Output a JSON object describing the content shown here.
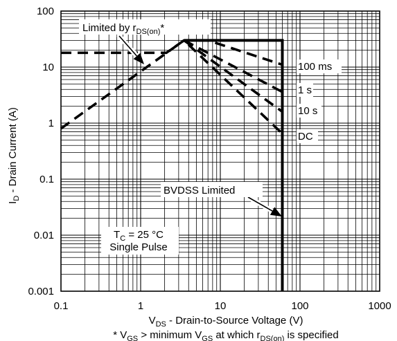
{
  "chart_data": {
    "type": "line",
    "scale": {
      "x": "log",
      "y": "log"
    },
    "xlim": [
      0.1,
      1000
    ],
    "ylim": [
      0.001,
      100
    ],
    "grid": true,
    "x_ticks": [
      "0.1",
      "1",
      "10",
      "100",
      "1000"
    ],
    "y_ticks": [
      "0.001",
      "0.01",
      "0.1",
      "1",
      "10",
      "100"
    ],
    "xlabel": {
      "main": "V",
      "sub": "DS",
      "rest": " - Drain-to-Source Voltage (V)"
    },
    "ylabel": {
      "main": "I",
      "sub": "D",
      "rest": " - Drain Current (A)"
    },
    "footnote": {
      "p1": "* V",
      "s1": "GS",
      "p2": " > minimum V",
      "s2": "GS",
      "p3": " at which r",
      "s3": "DS(on)",
      "p4": " is specified"
    },
    "series": [
      {
        "name": "",
        "style": "solid",
        "points": [
          [
            3.5,
            30
          ],
          [
            60,
            30
          ],
          [
            60,
            0.001
          ]
        ]
      },
      {
        "name": "100 ms",
        "style": "dashed",
        "points": [
          [
            0.1,
            0.8
          ],
          [
            3.5,
            30
          ],
          [
            7,
            30
          ],
          [
            60,
            11
          ]
        ]
      },
      {
        "name": "1 s",
        "style": "dashed",
        "points": [
          [
            3.5,
            30
          ],
          [
            60,
            3.6
          ]
        ]
      },
      {
        "name": "10 s",
        "style": "dashed",
        "points": [
          [
            3.5,
            30
          ],
          [
            60,
            1.6
          ]
        ]
      },
      {
        "name": "DC",
        "style": "dashed",
        "points": [
          [
            0.1,
            18
          ],
          [
            2.1,
            18
          ],
          [
            3.5,
            30
          ],
          [
            60,
            0.65
          ]
        ]
      }
    ],
    "annotations": {
      "rds": {
        "p1": "Limited by r",
        "sub": "DS(on)",
        "p2": "*"
      },
      "bvdss": "BVDSS Limited",
      "tc": {
        "p1": "T",
        "sub": "C",
        "p2": " = 25 °C"
      },
      "pulse": "Single Pulse"
    },
    "line_labels": {
      "ms100": "100 ms",
      "s1": "1 s",
      "s10": "10 s",
      "dc": "DC"
    }
  }
}
